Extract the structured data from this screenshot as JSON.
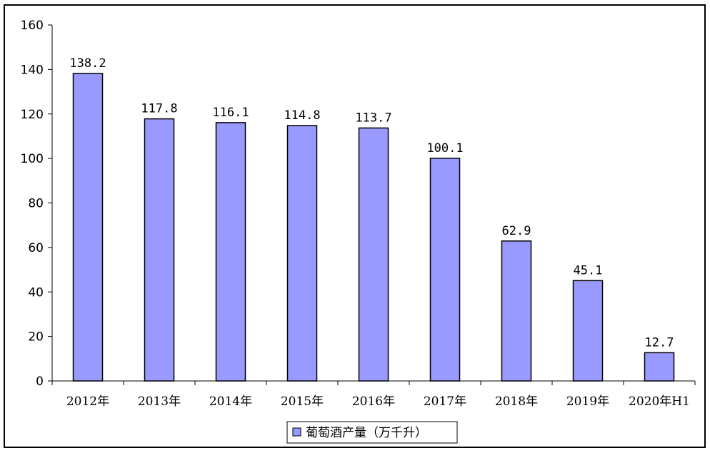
{
  "chart_data": {
    "type": "bar",
    "categories": [
      "2012年",
      "2013年",
      "2014年",
      "2015年",
      "2016年",
      "2017年",
      "2018年",
      "2019年",
      "2020年H1"
    ],
    "series": [
      {
        "name": "葡萄酒产量（万千升）",
        "values": [
          138.2,
          117.8,
          116.1,
          114.8,
          113.7,
          100.1,
          62.9,
          45.1,
          12.7
        ],
        "labels": [
          "138.2",
          "117.8",
          "116.1",
          "114.8",
          "113.7",
          "100.1",
          "62.9",
          "45.1",
          "12.7"
        ],
        "color": "#9999ff"
      }
    ],
    "ylim": [
      0,
      160
    ],
    "yticks": [
      0,
      20,
      40,
      60,
      80,
      100,
      120,
      140,
      160
    ],
    "grid": false,
    "legend": "bottom-center"
  }
}
